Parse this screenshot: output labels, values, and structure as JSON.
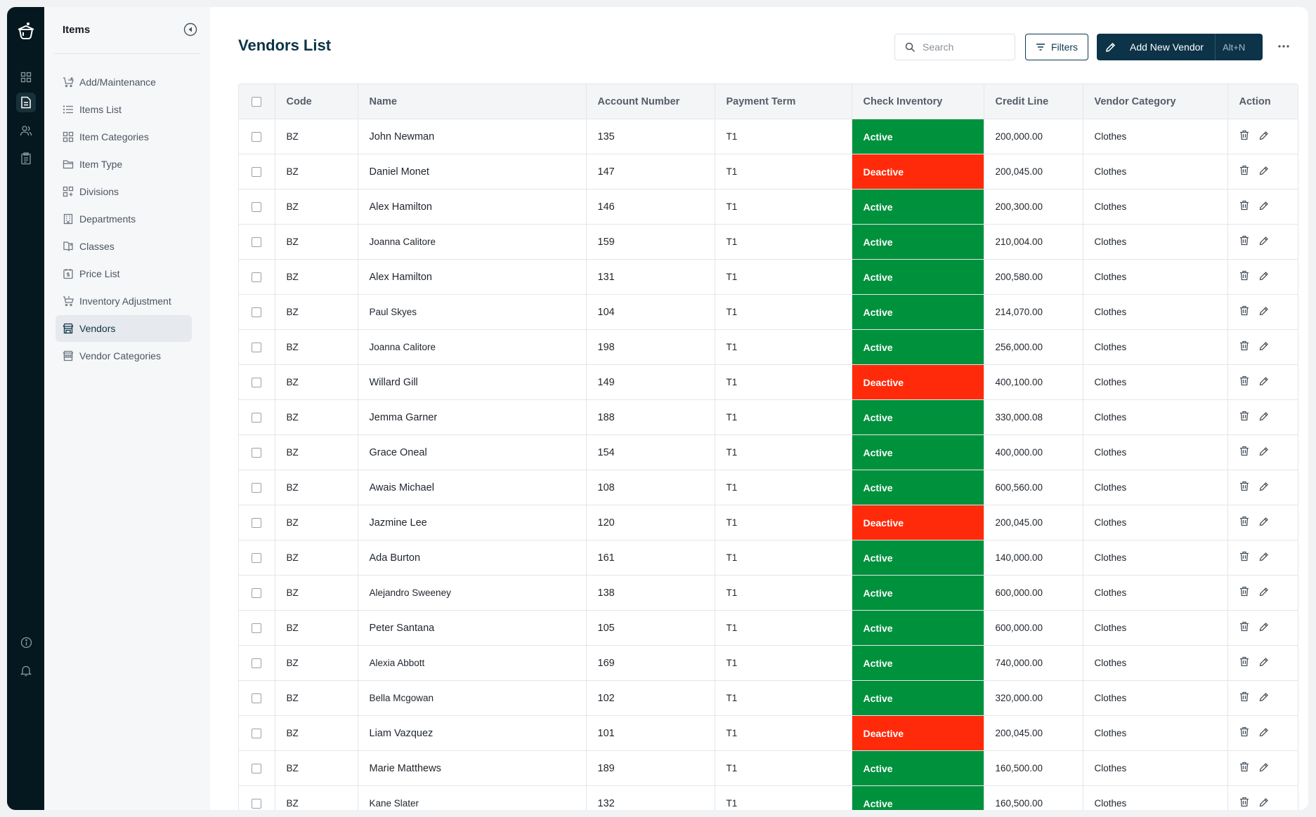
{
  "sidebar": {
    "title": "Items",
    "items": [
      {
        "label": "Add/Maintenance",
        "icon": "cart-add-icon",
        "active": false
      },
      {
        "label": "Items List",
        "icon": "list-icon",
        "active": false
      },
      {
        "label": "Item Categories",
        "icon": "grid-icon",
        "active": false
      },
      {
        "label": "Item Type",
        "icon": "folder-icon",
        "active": false
      },
      {
        "label": "Divisions",
        "icon": "grid-plus-icon",
        "active": false
      },
      {
        "label": "Departments",
        "icon": "building-icon",
        "active": false
      },
      {
        "label": "Classes",
        "icon": "book-icon",
        "active": false
      },
      {
        "label": "Price List",
        "icon": "price-tag-icon",
        "active": false
      },
      {
        "label": "Inventory Adjustment",
        "icon": "cart-icon",
        "active": false
      },
      {
        "label": "Vendors",
        "icon": "store-icon",
        "active": true
      },
      {
        "label": "Vendor Categories",
        "icon": "store-rows-icon",
        "active": false
      }
    ]
  },
  "header": {
    "title": "Vendors List",
    "search_placeholder": "Search",
    "filters_label": "Filters",
    "add_label": "Add New Vendor",
    "add_shortcut": "Alt+N"
  },
  "table": {
    "columns": [
      "Code",
      "Name",
      "Account Number",
      "Payment Term",
      "Check Inventory",
      "Credit Line",
      "Vendor Category",
      "Action"
    ],
    "rows": [
      {
        "code": "BZ",
        "name": "John Newman",
        "account": "135",
        "term": "T1",
        "status": "Active",
        "credit": "200,000.00",
        "category": "Clothes"
      },
      {
        "code": "BZ",
        "name": "Daniel Monet",
        "account": "147",
        "term": "T1",
        "status": "Deactive",
        "credit": "200,045.00",
        "category": "Clothes"
      },
      {
        "code": "BZ",
        "name": "Alex Hamilton",
        "account": "146",
        "term": "T1",
        "status": "Active",
        "credit": "200,300.00",
        "category": "Clothes"
      },
      {
        "code": "BZ",
        "name": "Joanna Calitore",
        "account": "159",
        "term": "T1",
        "status": "Active",
        "credit": "210,004.00",
        "category": "Clothes"
      },
      {
        "code": "BZ",
        "name": "Alex Hamilton",
        "account": "131",
        "term": "T1",
        "status": "Active",
        "credit": "200,580.00",
        "category": "Clothes"
      },
      {
        "code": "BZ",
        "name": "Paul Skyes",
        "account": "104",
        "term": "T1",
        "status": "Active",
        "credit": "214,070.00",
        "category": "Clothes"
      },
      {
        "code": "BZ",
        "name": "Joanna Calitore",
        "account": "198",
        "term": "T1",
        "status": "Active",
        "credit": "256,000.00",
        "category": "Clothes"
      },
      {
        "code": "BZ",
        "name": "Willard Gill",
        "account": "149",
        "term": "T1",
        "status": "Deactive",
        "credit": "400,100.00",
        "category": "Clothes"
      },
      {
        "code": "BZ",
        "name": "Jemma Garner",
        "account": "188",
        "term": "T1",
        "status": "Active",
        "credit": "330,000.08",
        "category": "Clothes"
      },
      {
        "code": "BZ",
        "name": "Grace Oneal",
        "account": "154",
        "term": "T1",
        "status": "Active",
        "credit": "400,000.00",
        "category": "Clothes"
      },
      {
        "code": "BZ",
        "name": "Awais Michael",
        "account": "108",
        "term": "T1",
        "status": "Active",
        "credit": "600,560.00",
        "category": "Clothes"
      },
      {
        "code": "BZ",
        "name": "Jazmine Lee",
        "account": "120",
        "term": "T1",
        "status": "Deactive",
        "credit": "200,045.00",
        "category": "Clothes"
      },
      {
        "code": "BZ",
        "name": "Ada Burton",
        "account": "161",
        "term": "T1",
        "status": "Active",
        "credit": "140,000.00",
        "category": "Clothes"
      },
      {
        "code": "BZ",
        "name": "Alejandro Sweeney",
        "account": "138",
        "term": "T1",
        "status": "Active",
        "credit": "600,000.00",
        "category": "Clothes"
      },
      {
        "code": "BZ",
        "name": "Peter Santana",
        "account": "105",
        "term": "T1",
        "status": "Active",
        "credit": "600,000.00",
        "category": "Clothes"
      },
      {
        "code": "BZ",
        "name": "Alexia Abbott",
        "account": "169",
        "term": "T1",
        "status": "Active",
        "credit": "740,000.00",
        "category": "Clothes"
      },
      {
        "code": "BZ",
        "name": "Bella Mcgowan",
        "account": "102",
        "term": "T1",
        "status": "Active",
        "credit": "320,000.00",
        "category": "Clothes"
      },
      {
        "code": "BZ",
        "name": "Liam Vazquez",
        "account": "101",
        "term": "T1",
        "status": "Deactive",
        "credit": "200,045.00",
        "category": "Clothes"
      },
      {
        "code": "BZ",
        "name": "Marie Matthews",
        "account": "189",
        "term": "T1",
        "status": "Active",
        "credit": "160,500.00",
        "category": "Clothes"
      },
      {
        "code": "BZ",
        "name": "Kane Slater",
        "account": "132",
        "term": "T1",
        "status": "Active",
        "credit": "160,500.00",
        "category": "Clothes"
      }
    ]
  },
  "colors": {
    "rail": "#05181f",
    "brand": "#0c3347",
    "active_status": "#00913d",
    "deactive_status": "#ff2a0a"
  }
}
